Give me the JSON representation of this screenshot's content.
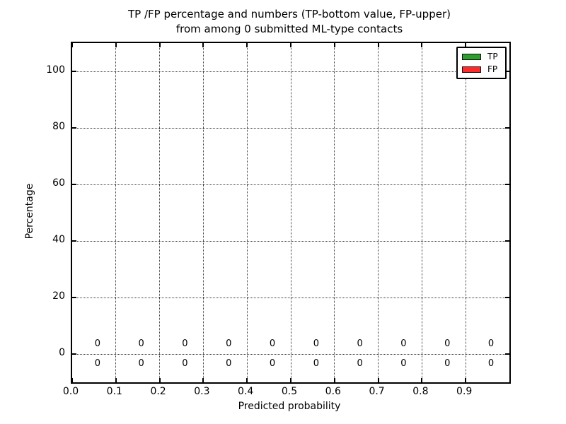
{
  "title_line1": "TP /FP percentage and numbers (TP-bottom value, FP-upper)",
  "title_line2": "from among 0 submitted ML-type contacts",
  "chart_data": {
    "type": "bar",
    "stacked": true,
    "title": "TP /FP percentage and numbers (TP-bottom value, FP-upper)\nfrom among 0 submitted ML-type contacts",
    "xlabel": "Predicted probability",
    "ylabel": "Percentage",
    "xlim": [
      0.0,
      1.0
    ],
    "ylim": [
      -10,
      110
    ],
    "grid": true,
    "grid_style": "dotted",
    "xticks": [
      {
        "value": 0.0,
        "label": "0.0"
      },
      {
        "value": 0.1,
        "label": "0.1"
      },
      {
        "value": 0.2,
        "label": "0.2"
      },
      {
        "value": 0.3,
        "label": "0.3"
      },
      {
        "value": 0.4,
        "label": "0.4"
      },
      {
        "value": 0.5,
        "label": "0.5"
      },
      {
        "value": 0.6,
        "label": "0.6"
      },
      {
        "value": 0.7,
        "label": "0.7"
      },
      {
        "value": 0.8,
        "label": "0.8"
      },
      {
        "value": 0.9,
        "label": "0.9"
      }
    ],
    "yticks": [
      {
        "value": 0,
        "label": "0"
      },
      {
        "value": 20,
        "label": "20"
      },
      {
        "value": 40,
        "label": "40"
      },
      {
        "value": 60,
        "label": "60"
      },
      {
        "value": 80,
        "label": "80"
      },
      {
        "value": 100,
        "label": "100"
      }
    ],
    "bin_centers": [
      0.058,
      0.158,
      0.258,
      0.358,
      0.458,
      0.558,
      0.658,
      0.758,
      0.858,
      0.958
    ],
    "series": [
      {
        "name": "TP",
        "color": "#2ca02c",
        "values": [
          0,
          0,
          0,
          0,
          0,
          0,
          0,
          0,
          0,
          0
        ]
      },
      {
        "name": "FP",
        "color": "#ff2a2a",
        "values": [
          0,
          0,
          0,
          0,
          0,
          0,
          0,
          0,
          0,
          0
        ]
      }
    ],
    "annotation_y": {
      "fp_upper": 3.5,
      "tp_lower": -3.5
    },
    "legend": {
      "position": "upper right",
      "entries": [
        "TP",
        "FP"
      ]
    }
  }
}
